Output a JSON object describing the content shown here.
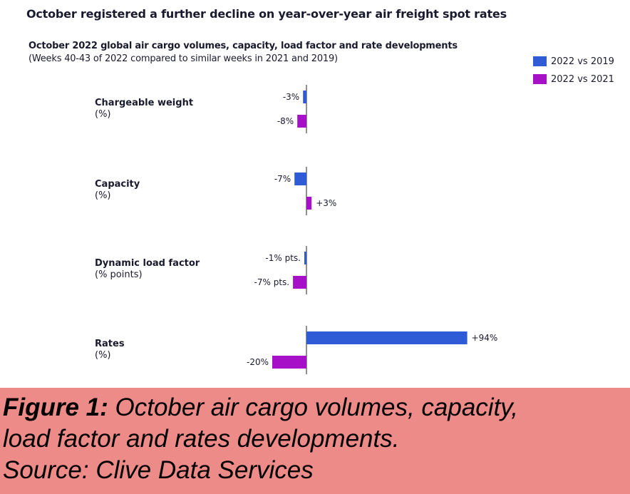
{
  "title": "October registered a further decline on year-over-year air freight spot rates",
  "subtitle": "October 2022 global air cargo volumes, capacity, load factor and rate developments",
  "subnote": "(Weeks 40-43 of 2022 compared to similar weeks in 2021 and 2019)",
  "colors": {
    "vs2019": "#2f5bd6",
    "vs2021": "#a610c7",
    "axis": "#555555"
  },
  "legend": [
    {
      "label": "2022 vs 2019",
      "color": "#2f5bd6"
    },
    {
      "label": "2022 vs 2021",
      "color": "#a610c7"
    }
  ],
  "chart_data": {
    "type": "bar",
    "orientation": "horizontal",
    "scale_note": "bar lengths are not to a common scale",
    "legend_position": "top-right",
    "series_names": [
      "2022 vs 2019",
      "2022 vs 2021"
    ],
    "groups": [
      {
        "name": "Chargeable weight",
        "unit": "(%)",
        "values": [
          -3,
          -8
        ],
        "labels": [
          "-3%",
          "-8%"
        ]
      },
      {
        "name": "Capacity",
        "unit": "(%)",
        "values": [
          -7,
          3
        ],
        "labels": [
          "-7%",
          "+3%"
        ]
      },
      {
        "name": "Dynamic load factor",
        "unit": "(% points)",
        "values": [
          -1,
          -7
        ],
        "labels": [
          "-1% pts.",
          "-7% pts."
        ]
      },
      {
        "name": "Rates",
        "unit": "(%)",
        "values": [
          94,
          -20
        ],
        "labels": [
          "+94%",
          "-20%"
        ]
      }
    ]
  },
  "caption": {
    "figure_label": "Figure 1:",
    "line1_rest": " October air cargo volumes, capacity,",
    "line2": "load factor and rates developments.",
    "line3": "Source: Clive Data Services"
  }
}
